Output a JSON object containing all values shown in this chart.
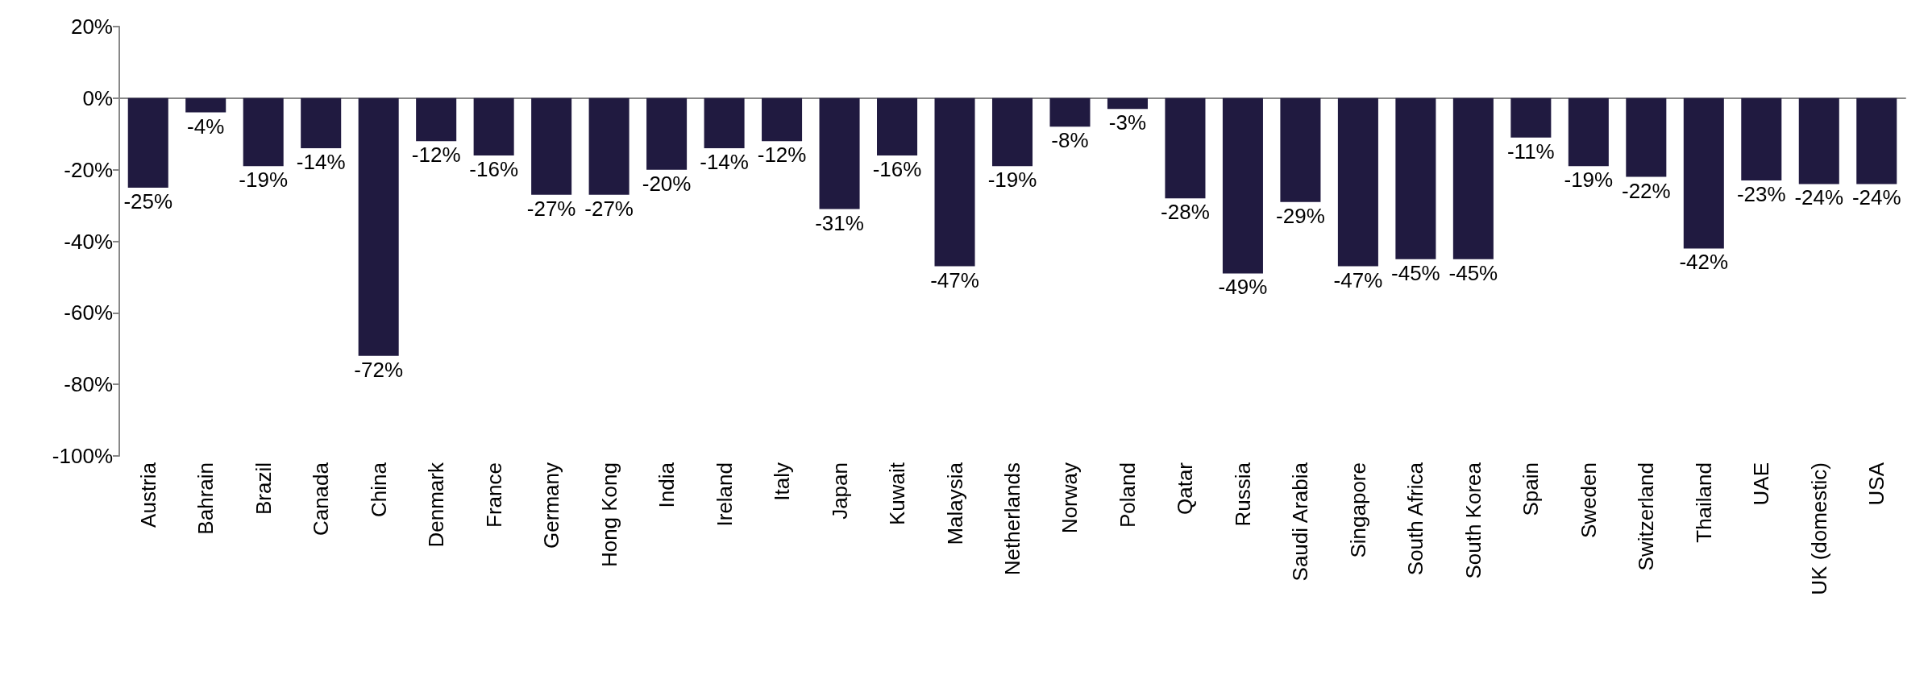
{
  "chart_data": {
    "type": "bar",
    "categories": [
      "Austria",
      "Bahrain",
      "Brazil",
      "Canada",
      "China",
      "Denmark",
      "France",
      "Germany",
      "Hong Kong",
      "India",
      "Ireland",
      "Italy",
      "Japan",
      "Kuwait",
      "Malaysia",
      "Netherlands",
      "Norway",
      "Poland",
      "Qatar",
      "Russia",
      "Saudi Arabia",
      "Singapore",
      "South Africa",
      "South Korea",
      "Spain",
      "Sweden",
      "Switzerland",
      "Thailand",
      "UAE",
      "UK (domestic)",
      "USA"
    ],
    "values": [
      -25,
      -4,
      -19,
      -14,
      -72,
      -12,
      -16,
      -27,
      -27,
      -20,
      -14,
      -12,
      -31,
      -16,
      -47,
      -19,
      -8,
      -3,
      -28,
      -49,
      -29,
      -47,
      -45,
      -45,
      -11,
      -19,
      -22,
      -42,
      -23,
      -24,
      -24
    ],
    "value_labels": [
      "-25%",
      "-4%",
      "-19%",
      "-14%",
      "-72%",
      "-12%",
      "-16%",
      "-27%",
      "-27%",
      "-20%",
      "-14%",
      "-12%",
      "-31%",
      "-16%",
      "-47%",
      "-19%",
      "-8%",
      "-3%",
      "-28%",
      "-49%",
      "-29%",
      "-47%",
      "-45%",
      "-45%",
      "-11%",
      "-19%",
      "-22%",
      "-42%",
      "-23%",
      "-24%",
      "-24%"
    ],
    "color": "#201a40",
    "ylim": [
      -100,
      20
    ],
    "yticks": [
      {
        "value": -100,
        "label": "-100%"
      },
      {
        "value": -80,
        "label": "-80%"
      },
      {
        "value": -60,
        "label": "-60%"
      },
      {
        "value": -40,
        "label": "-40%"
      },
      {
        "value": -20,
        "label": "-20%"
      },
      {
        "value": 0,
        "label": "0%"
      },
      {
        "value": 20,
        "label": "20%"
      }
    ],
    "tick_labels": null
  }
}
